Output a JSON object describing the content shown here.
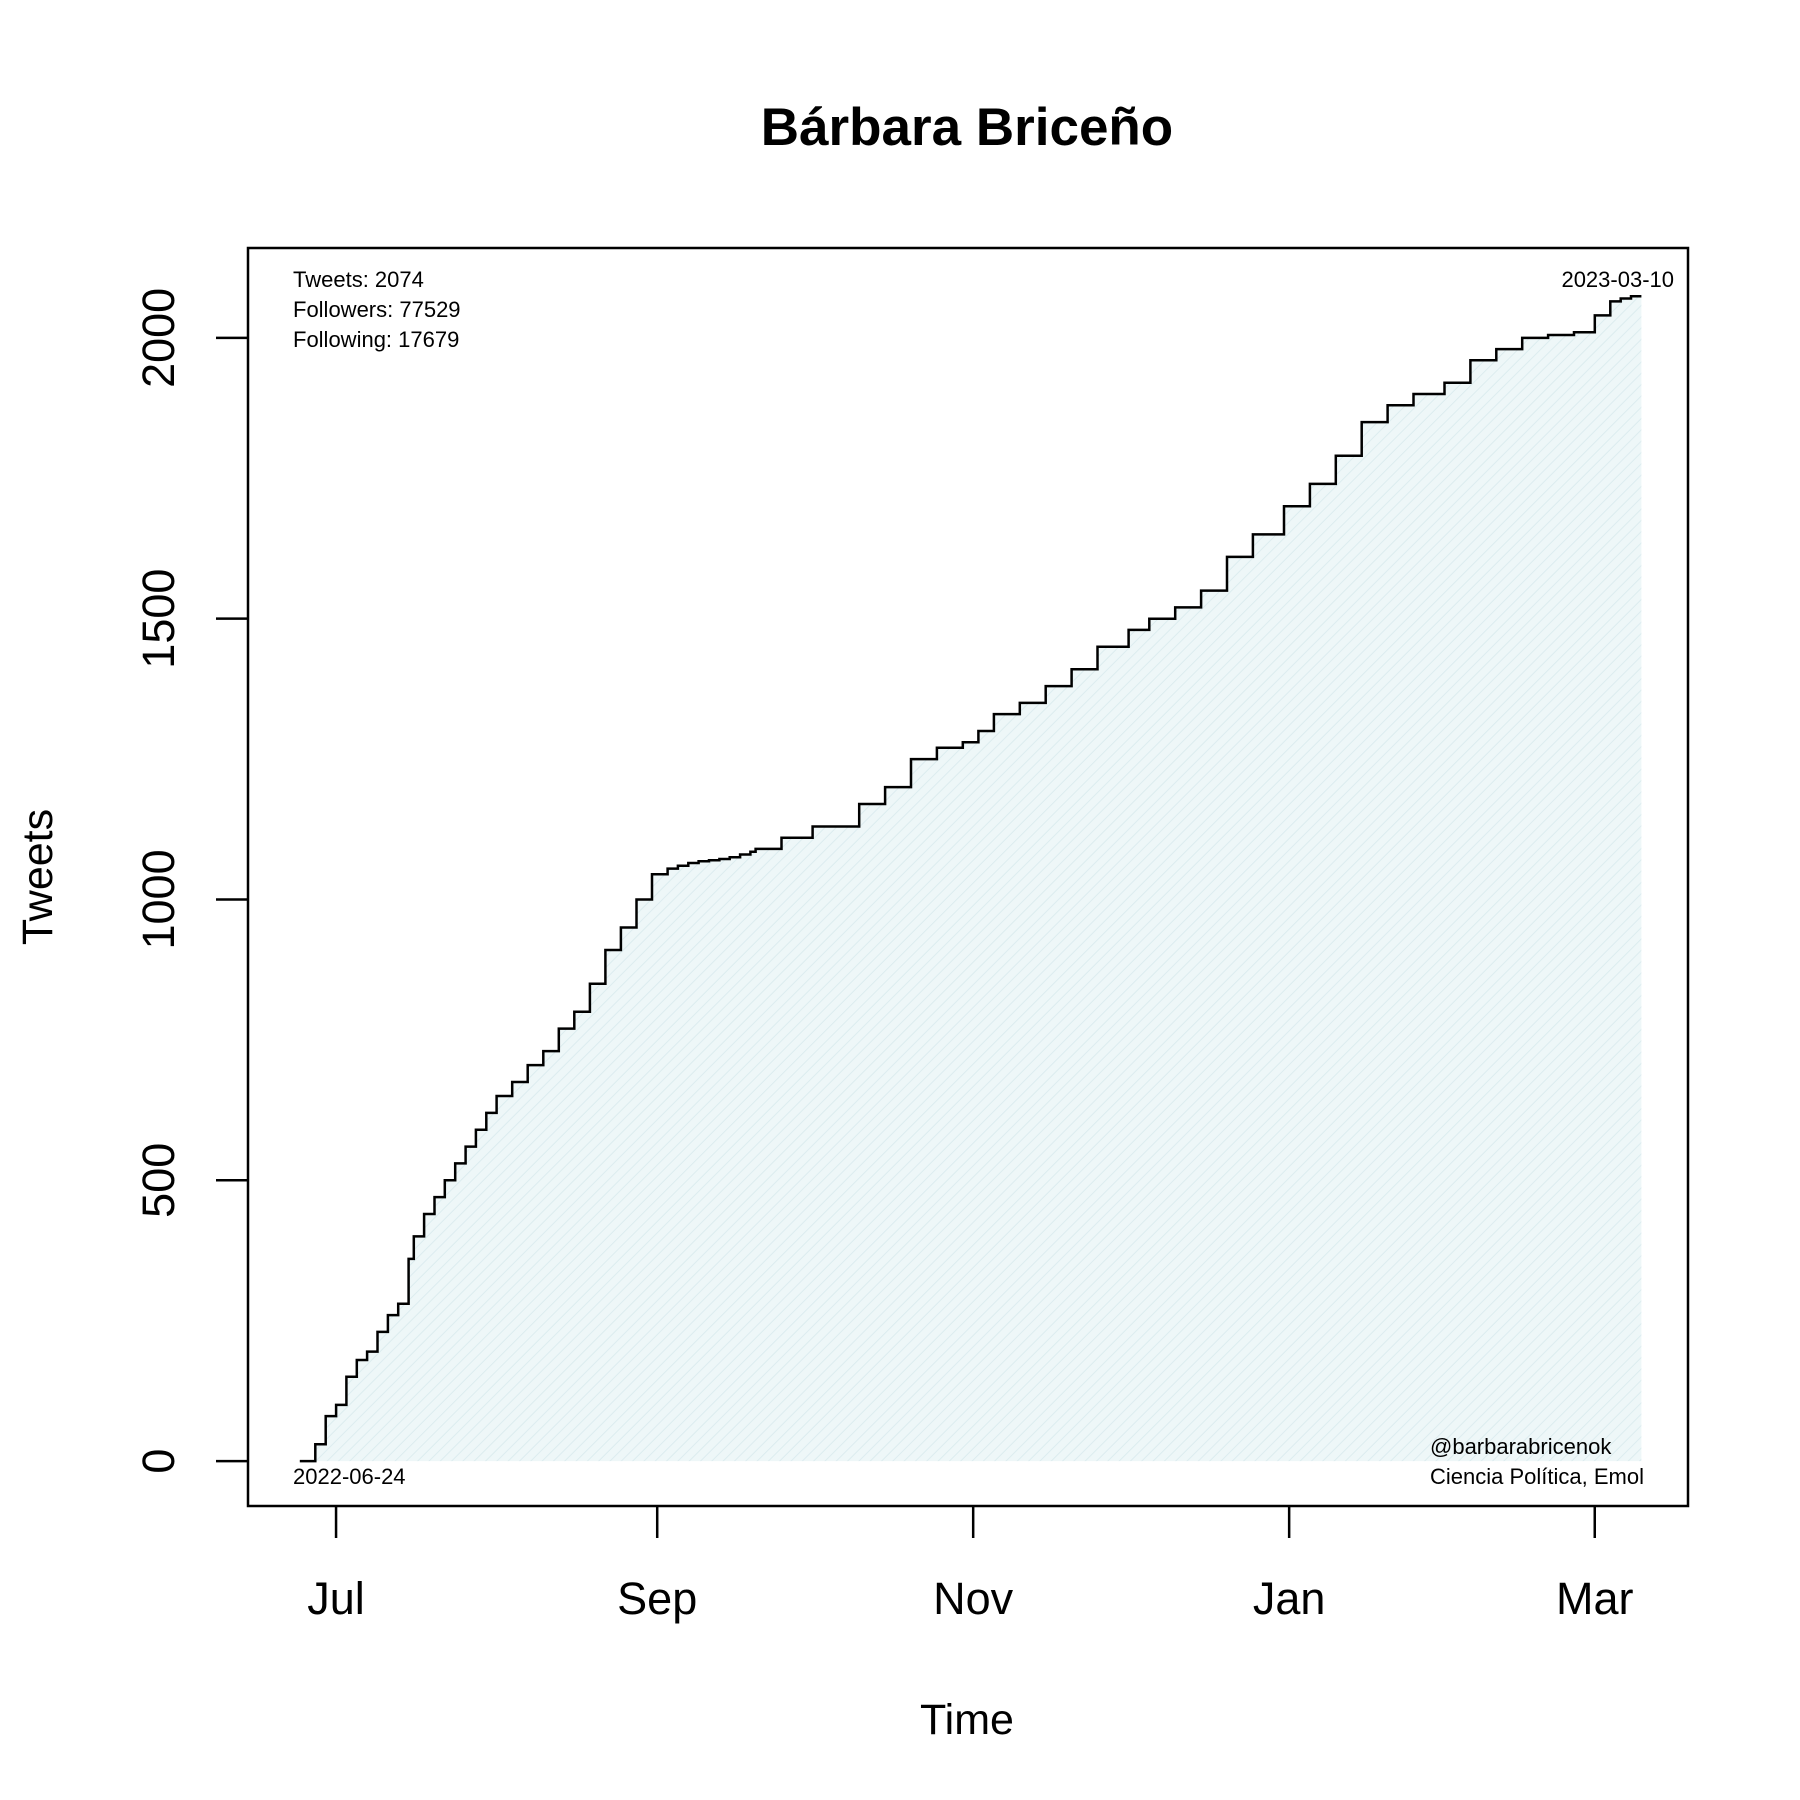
{
  "chart_data": {
    "type": "line",
    "style": "step",
    "title": "Bárbara Briceño",
    "xlabel": "Time",
    "ylabel": "Tweets",
    "x_ticks": [
      {
        "date": "2022-07-01",
        "label": "Jul"
      },
      {
        "date": "2022-09-01",
        "label": "Sep"
      },
      {
        "date": "2022-11-01",
        "label": "Nov"
      },
      {
        "date": "2023-01-01",
        "label": "Jan"
      },
      {
        "date": "2023-03-01",
        "label": "Mar"
      }
    ],
    "y_ticks": [
      0,
      500,
      1000,
      1500,
      2000
    ],
    "xlim": [
      "2022-06-14",
      "2023-03-19"
    ],
    "ylim": [
      -80,
      2160
    ],
    "grid": false,
    "legend": "none",
    "fill_color": "#e8f4f6",
    "line_color": "#000000",
    "annotations": {
      "stats": [
        "Tweets: 2074",
        "Followers: 77529",
        "Following: 17679"
      ],
      "end_date": "2023-03-10",
      "start_date": "2022-06-24",
      "handle": "@barbarabricenok",
      "affiliation": "Ciencia Política, Emol"
    },
    "series": [
      {
        "x": [
          "2022-06-24",
          "2022-06-27",
          "2022-06-29",
          "2022-07-01",
          "2022-07-03",
          "2022-07-05",
          "2022-07-07",
          "2022-07-09",
          "2022-07-11",
          "2022-07-13",
          "2022-07-15",
          "2022-07-16",
          "2022-07-18",
          "2022-07-20",
          "2022-07-22",
          "2022-07-24",
          "2022-07-26",
          "2022-07-28",
          "2022-07-30",
          "2022-08-01",
          "2022-08-04",
          "2022-08-07",
          "2022-08-10",
          "2022-08-13",
          "2022-08-16",
          "2022-08-19",
          "2022-08-22",
          "2022-08-25",
          "2022-08-28",
          "2022-08-31",
          "2022-09-03",
          "2022-09-05",
          "2022-09-07",
          "2022-09-09",
          "2022-09-11",
          "2022-09-13",
          "2022-09-15",
          "2022-09-17",
          "2022-09-19",
          "2022-09-20",
          "2022-09-25",
          "2022-10-01",
          "2022-10-10",
          "2022-10-15",
          "2022-10-20",
          "2022-10-25",
          "2022-10-30",
          "2022-11-02",
          "2022-11-05",
          "2022-11-10",
          "2022-11-15",
          "2022-11-20",
          "2022-11-25",
          "2022-12-01",
          "2022-12-05",
          "2022-12-10",
          "2022-12-15",
          "2022-12-20",
          "2022-12-25",
          "2022-12-31",
          "2023-01-05",
          "2023-01-10",
          "2023-01-15",
          "2023-01-20",
          "2023-01-25",
          "2023-01-31",
          "2023-02-05",
          "2023-02-10",
          "2023-02-15",
          "2023-02-20",
          "2023-02-25",
          "2023-03-01",
          "2023-03-04",
          "2023-03-06",
          "2023-03-08",
          "2023-03-10"
        ],
        "y": [
          0,
          30,
          80,
          100,
          150,
          180,
          195,
          230,
          260,
          280,
          360,
          400,
          440,
          470,
          500,
          530,
          560,
          590,
          620,
          650,
          675,
          705,
          730,
          770,
          800,
          850,
          910,
          950,
          1000,
          1045,
          1055,
          1060,
          1065,
          1068,
          1070,
          1072,
          1075,
          1080,
          1085,
          1090,
          1110,
          1130,
          1170,
          1200,
          1250,
          1270,
          1280,
          1300,
          1330,
          1350,
          1380,
          1410,
          1450,
          1480,
          1500,
          1520,
          1550,
          1610,
          1650,
          1700,
          1740,
          1790,
          1850,
          1880,
          1900,
          1920,
          1960,
          1980,
          2000,
          2005,
          2010,
          2040,
          2065,
          2070,
          2074,
          2074
        ]
      }
    ]
  }
}
